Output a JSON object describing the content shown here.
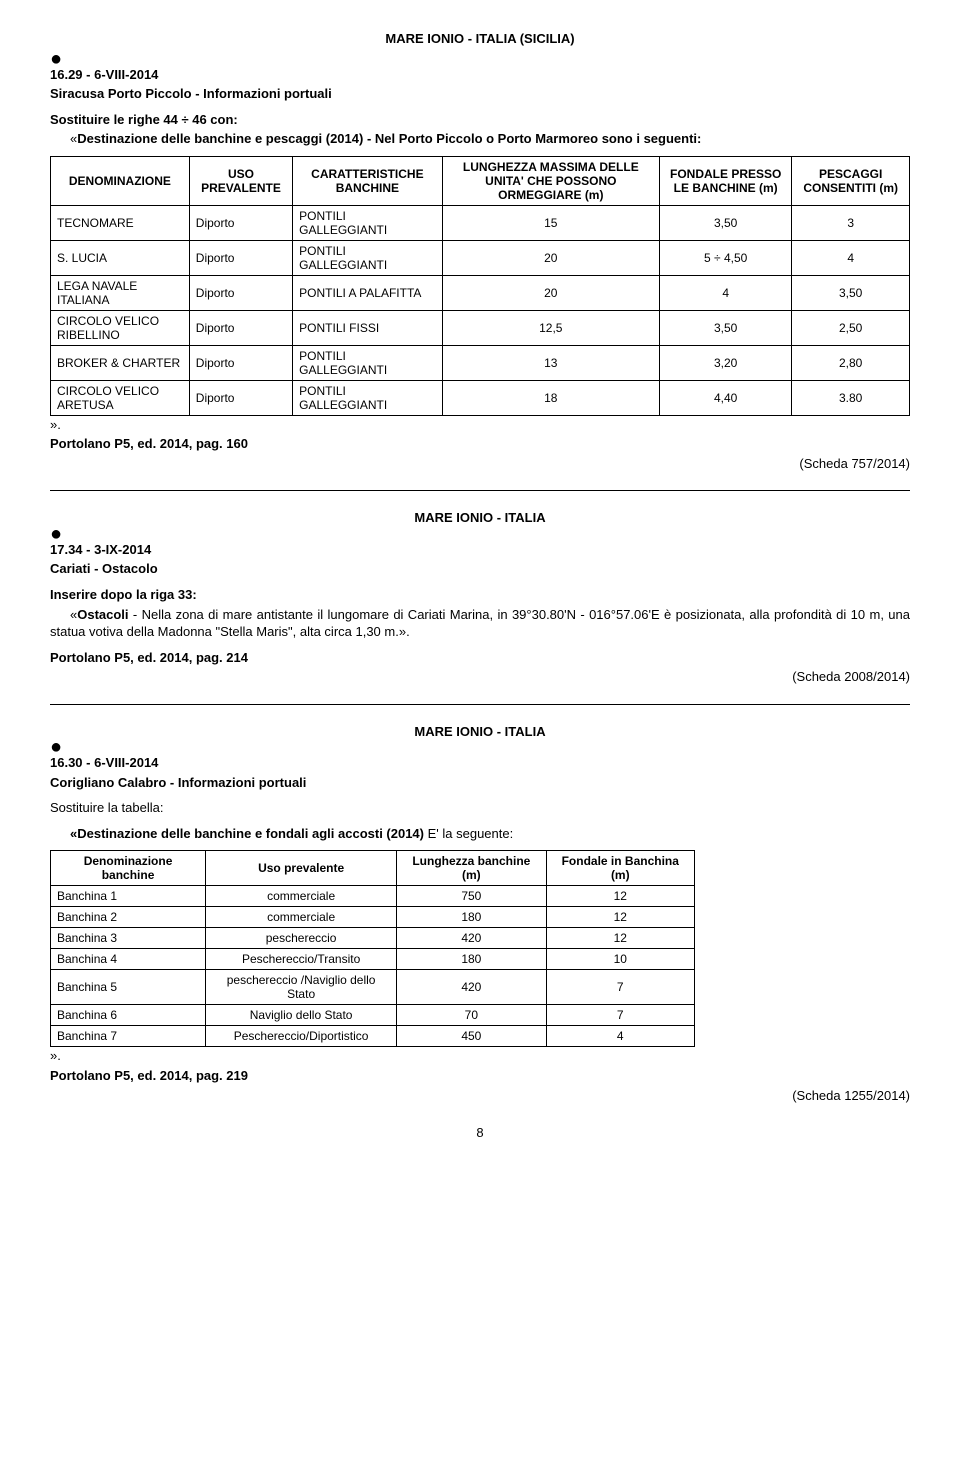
{
  "sec1": {
    "title": "MARE IONIO - ITALIA (SICILIA)",
    "ref": "16.29 - 6-VIII-2014",
    "subtitle": "Siracusa Porto Piccolo  - Informazioni portuali",
    "instr_prefix": "Sostituire le righe 44 ÷ 46 con:",
    "instr_body": "Destinazione delle  banchine e pescaggi (2014) - Nel Porto Piccolo o Porto Marmoreo sono i seguenti:",
    "table": {
      "headers": {
        "c1": "DENOMINAZIONE",
        "c2": "USO PREVALENTE",
        "c3": "CARATTERISTICHE BANCHINE",
        "c4": "LUNGHEZZA MASSIMA DELLE UNITA' CHE POSSONO ORMEGGIARE (m)",
        "c5": "FONDALE PRESSO LE BANCHINE (m)",
        "c6": "PESCAGGI CONSENTITI (m)"
      },
      "rows": [
        {
          "c1": "TECNOMARE",
          "c2": "Diporto",
          "c3": "PONTILI GALLEGGIANTI",
          "c4": "15",
          "c5": "3,50",
          "c6": "3"
        },
        {
          "c1": "S. LUCIA",
          "c2": "Diporto",
          "c3": "PONTILI GALLEGGIANTI",
          "c4": "20",
          "c5": "5 ÷ 4,50",
          "c6": "4"
        },
        {
          "c1": "LEGA NAVALE ITALIANA",
          "c2": "Diporto",
          "c3": "PONTILI  A PALAFITTA",
          "c4": "20",
          "c5": "4",
          "c6": "3,50"
        },
        {
          "c1": "CIRCOLO VELICO RIBELLINO",
          "c2": "Diporto",
          "c3": "PONTILI FISSI",
          "c4": "12,5",
          "c5": "3,50",
          "c6": "2,50"
        },
        {
          "c1": "BROKER & CHARTER",
          "c2": "Diporto",
          "c3": "PONTILI GALLEGGIANTI",
          "c4": "13",
          "c5": "3,20",
          "c6": "2,80"
        },
        {
          "c1": "CIRCOLO VELICO ARETUSA",
          "c2": "Diporto",
          "c3": "PONTILI GALLEGGIANTI",
          "c4": "18",
          "c5": "4,40",
          "c6": "3.80"
        }
      ]
    },
    "portolano": "Portolano P5, ed. 2014, pag. 160",
    "scheda": "(Scheda 757/2014)"
  },
  "sec2": {
    "title": "MARE IONIO - ITALIA",
    "ref": "17.34 - 3-IX-2014",
    "subtitle": "Cariati - Ostacolo",
    "instr_prefix": "Inserire dopo la riga 33:",
    "body_label": "Ostacoli",
    "body_rest": " - Nella zona di mare antistante il lungomare di Cariati Marina, in 39°30.80'N - 016°57.06'E è posizionata, alla profondità di 10 m, una statua votiva della Madonna \"Stella Maris\", alta circa 1,30 m.».",
    "portolano": "Portolano P5, ed. 2014, pag. 214",
    "scheda": "(Scheda 2008/2014)"
  },
  "sec3": {
    "title": "MARE IONIO - ITALIA",
    "ref": "16.30 - 6-VIII-2014",
    "subtitle": "Corigliano Calabro  - Informazioni portuali",
    "instr_prefix": "Sostituire la tabella:",
    "instr_body": "«Destinazione delle banchine e fondali agli accosti (2014) ",
    "instr_tail": "E' la seguente:",
    "table": {
      "headers": {
        "c1": "Denominazione banchine",
        "c2": "Uso prevalente",
        "c3": "Lunghezza banchine (m)",
        "c4": "Fondale in Banchina (m)"
      },
      "rows": [
        {
          "c1": "Banchina 1",
          "c2": "commerciale",
          "c3": "750",
          "c4": "12"
        },
        {
          "c1": "Banchina 2",
          "c2": "commerciale",
          "c3": "180",
          "c4": "12"
        },
        {
          "c1": "Banchina 3",
          "c2": "peschereccio",
          "c3": "420",
          "c4": "12"
        },
        {
          "c1": "Banchina 4",
          "c2": "Peschereccio/Transito",
          "c3": "180",
          "c4": "10"
        },
        {
          "c1": "Banchina 5",
          "c2": "peschereccio /Naviglio dello Stato",
          "c3": "420",
          "c4": "7"
        },
        {
          "c1": "Banchina 6",
          "c2": "Naviglio dello Stato",
          "c3": "70",
          "c4": "7"
        },
        {
          "c1": "Banchina 7",
          "c2": "Peschereccio/Diportistico",
          "c3": "450",
          "c4": "4"
        }
      ]
    },
    "portolano": "Portolano P5, ed. 2014, pag. 219",
    "scheda": "(Scheda 1255/2014)"
  },
  "pagenum": "8"
}
